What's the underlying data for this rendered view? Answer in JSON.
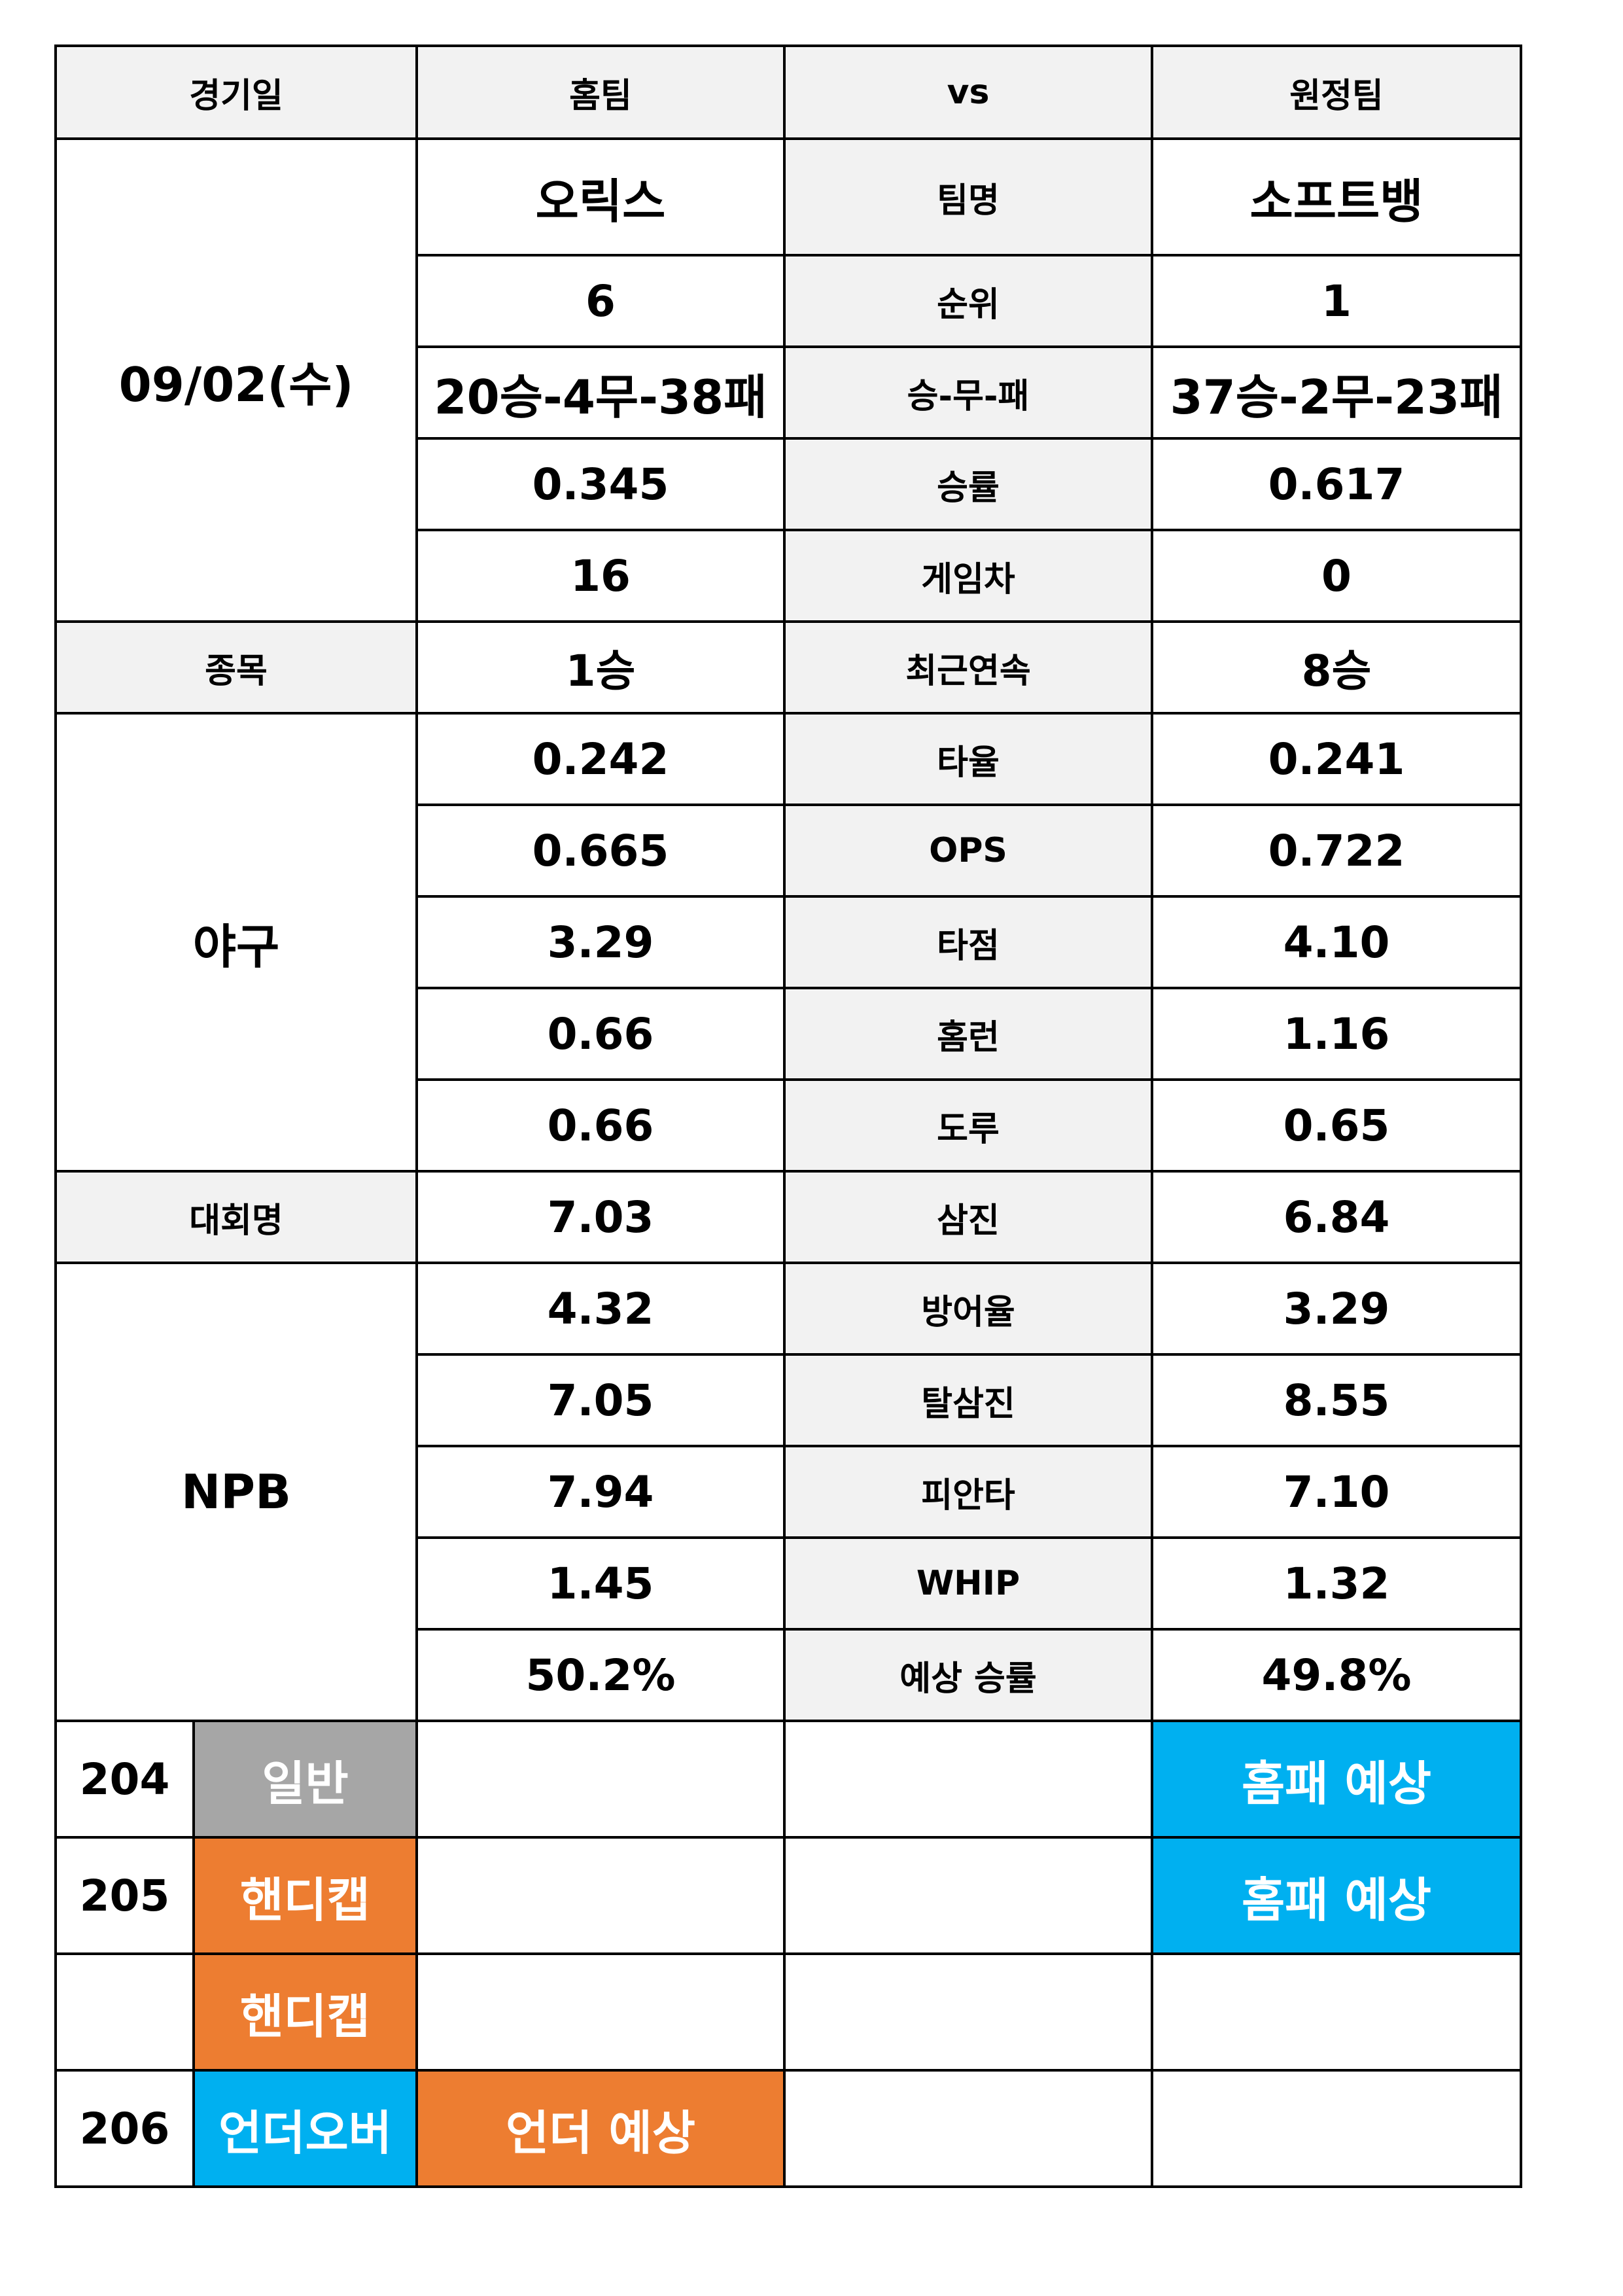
{
  "header": {
    "date_label": "경기일",
    "home_label": "홈팀",
    "vs_label": "vs",
    "away_label": "원정팀"
  },
  "match": {
    "date": "09/02(수)",
    "sport_label": "종목",
    "sport": "야구",
    "league_label": "대회명",
    "league": "NPB"
  },
  "stats": [
    {
      "label": "팀명",
      "home": "오릭스",
      "away": "소프트뱅"
    },
    {
      "label": "순위",
      "home": "6",
      "away": "1"
    },
    {
      "label": "승-무-패",
      "home": "20승-4무-38패",
      "away": "37승-2무-23패"
    },
    {
      "label": "승률",
      "home": "0.345",
      "away": "0.617"
    },
    {
      "label": "게임차",
      "home": "16",
      "away": "0"
    },
    {
      "label": "최근연속",
      "home": "1승",
      "away": "8승"
    },
    {
      "label": "타율",
      "home": "0.242",
      "away": "0.241"
    },
    {
      "label": "OPS",
      "home": "0.665",
      "away": "0.722"
    },
    {
      "label": "타점",
      "home": "3.29",
      "away": "4.10"
    },
    {
      "label": "홈런",
      "home": "0.66",
      "away": "1.16"
    },
    {
      "label": "도루",
      "home": "0.66",
      "away": "0.65"
    },
    {
      "label": "삼진",
      "home": "7.03",
      "away": "6.84"
    },
    {
      "label": "방어율",
      "home": "4.32",
      "away": "3.29"
    },
    {
      "label": "탈삼진",
      "home": "7.05",
      "away": "8.55"
    },
    {
      "label": "피안타",
      "home": "7.94",
      "away": "7.10"
    },
    {
      "label": "WHIP",
      "home": "1.45",
      "away": "1.32"
    },
    {
      "label": "예상 승률",
      "home": "50.2%",
      "away": "49.8%"
    }
  ],
  "bets": [
    {
      "number": "204",
      "type": "일반",
      "home_pick": "",
      "vs_pick": "",
      "away_pick": "홈패 예상"
    },
    {
      "number": "205",
      "type": "핸디캡",
      "home_pick": "",
      "vs_pick": "",
      "away_pick": "홈패 예상"
    },
    {
      "number": "",
      "type": "핸디캡",
      "home_pick": "",
      "vs_pick": "",
      "away_pick": ""
    },
    {
      "number": "206",
      "type": "언더오버",
      "home_pick": "언더 예상",
      "vs_pick": "",
      "away_pick": ""
    }
  ],
  "colors": {
    "gray": "#a6a6a6",
    "orange": "#ed7d31",
    "blue": "#00b0f0",
    "label_bg": "#f2f2f2"
  }
}
